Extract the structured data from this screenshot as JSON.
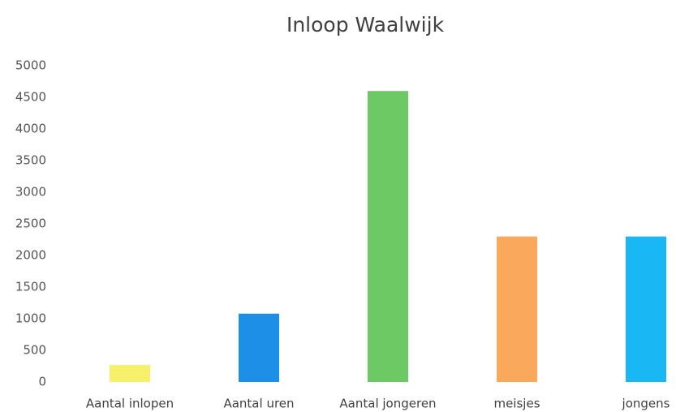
{
  "chart_data": {
    "type": "bar",
    "title": "Inloop Waalwijk",
    "categories": [
      "Aantal inlopen",
      "Aantal uren",
      "Aantal jongeren",
      "meisjes",
      "jongens"
    ],
    "values": [
      270,
      1080,
      4600,
      2300,
      2300
    ],
    "colors": [
      "#f7f06a",
      "#1e8fe6",
      "#6cc964",
      "#f9a85c",
      "#1ab7f5"
    ],
    "ylim": [
      0,
      5000
    ],
    "yticks": [
      0,
      500,
      1000,
      1500,
      2000,
      2500,
      3000,
      3500,
      4000,
      4500,
      5000
    ],
    "grid": false
  }
}
